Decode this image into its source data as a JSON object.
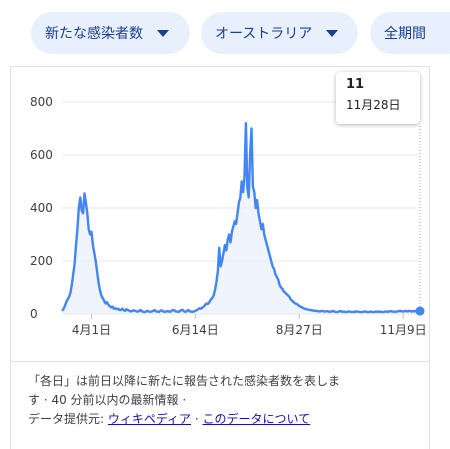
{
  "filters": {
    "metric": "新たな感染者数",
    "region": "オーストラリア",
    "period": "全期間"
  },
  "tooltip": {
    "value": "11",
    "date": "11月28日"
  },
  "footer": {
    "line1": "「各日」は前日以降に新たに報告された感染者数を表しま",
    "line2": "す · 40 分前以内の最新情報 ·",
    "source_label": "データ提供元:",
    "source_link": "ウィキペディア",
    "sep": "·",
    "about_link": "このデータについて"
  },
  "colors": {
    "line": "#4285f4",
    "fill": "#e8f0fe",
    "chip_bg": "#e8f0fe"
  },
  "chart_data": {
    "type": "area",
    "yticks": [
      "0",
      "200",
      "400",
      "600",
      "800"
    ],
    "ylim": [
      0,
      800
    ],
    "xticks": [
      "4月1日",
      "6月14日",
      "8月27日",
      "11月9日"
    ],
    "xtick_index": [
      21,
      95,
      169,
      243
    ],
    "values": [
      12,
      18,
      30,
      45,
      55,
      65,
      80,
      110,
      150,
      190,
      260,
      320,
      400,
      440,
      390,
      380,
      455,
      420,
      380,
      320,
      300,
      310,
      260,
      230,
      200,
      160,
      120,
      90,
      70,
      60,
      50,
      40,
      45,
      35,
      30,
      25,
      28,
      20,
      22,
      18,
      20,
      15,
      16,
      20,
      14,
      12,
      18,
      15,
      12,
      10,
      11,
      14,
      12,
      10,
      9,
      12,
      15,
      10,
      8,
      7,
      10,
      12,
      9,
      8,
      10,
      12,
      15,
      10,
      9,
      8,
      12,
      14,
      10,
      8,
      9,
      11,
      10,
      8,
      12,
      15,
      14,
      10,
      9,
      8,
      12,
      14,
      16,
      10,
      8,
      12,
      15,
      10,
      9,
      8,
      10,
      12,
      15,
      18,
      22,
      20,
      25,
      28,
      35,
      40,
      38,
      45,
      55,
      60,
      70,
      90,
      120,
      160,
      250,
      180,
      200,
      230,
      260,
      240,
      280,
      300,
      270,
      310,
      330,
      350,
      340,
      380,
      420,
      440,
      500,
      460,
      520,
      720,
      480,
      440,
      600,
      700,
      480,
      460,
      400,
      430,
      380,
      350,
      320,
      340,
      300,
      280,
      260,
      240,
      220,
      200,
      180,
      170,
      150,
      140,
      130,
      110,
      100,
      95,
      85,
      80,
      75,
      70,
      65,
      55,
      50,
      45,
      40,
      38,
      35,
      30,
      28,
      25,
      22,
      20,
      18,
      17,
      16,
      15,
      14,
      13,
      12,
      12,
      11,
      10,
      10,
      12,
      11,
      9,
      10,
      11,
      9,
      8,
      10,
      12,
      9,
      8,
      7,
      9,
      11,
      10,
      8,
      9,
      7,
      8,
      10,
      9,
      8,
      7,
      9,
      8,
      10,
      9,
      8,
      7,
      8,
      9,
      10,
      8,
      7,
      8,
      9,
      8,
      7,
      9,
      8,
      10,
      8,
      9,
      7,
      8,
      9,
      10,
      8,
      9,
      11,
      10,
      9,
      8,
      9,
      10,
      11,
      12,
      10,
      9,
      11,
      12,
      10,
      11,
      12,
      9,
      11,
      10,
      12,
      11,
      9,
      11
    ],
    "selected": {
      "label": "11月28日",
      "value": 11
    }
  }
}
